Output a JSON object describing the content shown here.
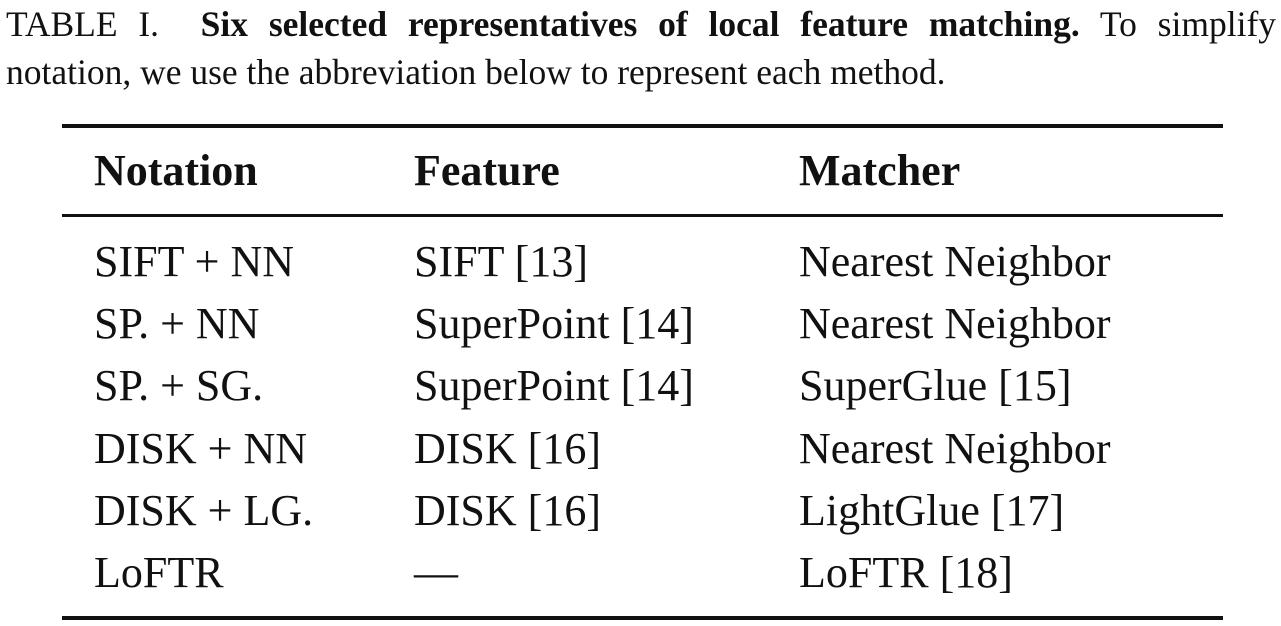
{
  "caption": {
    "label": "TABLE I.",
    "title": "Six selected representatives of local feature matching.",
    "text": "To simplify notation, we use the abbreviation below to represent each method."
  },
  "table": {
    "headers": [
      "Notation",
      "Feature",
      "Matcher"
    ],
    "rows": [
      [
        "SIFT + NN",
        "SIFT [13]",
        "Nearest Neighbor"
      ],
      [
        "SP. + NN",
        "SuperPoint [14]",
        "Nearest Neighbor"
      ],
      [
        "SP. + SG.",
        "SuperPoint [14]",
        "SuperGlue [15]"
      ],
      [
        "DISK + NN",
        "DISK [16]",
        "Nearest Neighbor"
      ],
      [
        "DISK + LG.",
        "DISK [16]",
        "LightGlue [17]"
      ],
      [
        "LoFTR",
        "—",
        "LoFTR [18]"
      ]
    ]
  }
}
